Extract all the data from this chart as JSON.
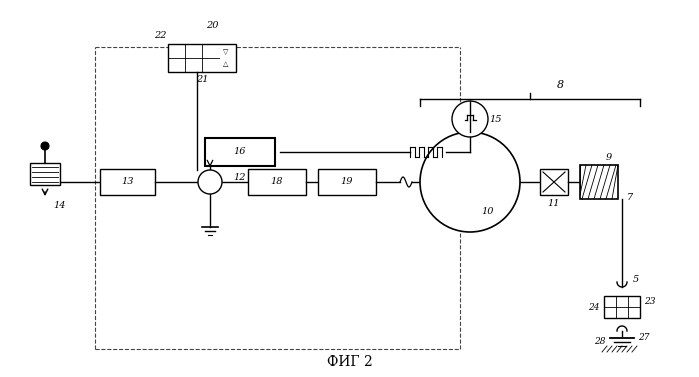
{
  "title": "ФИГ 2",
  "bg_color": "#ffffff",
  "line_color": "#000000",
  "dashed_color": "#555555",
  "fig_width": 6.99,
  "fig_height": 3.77,
  "dpi": 100
}
